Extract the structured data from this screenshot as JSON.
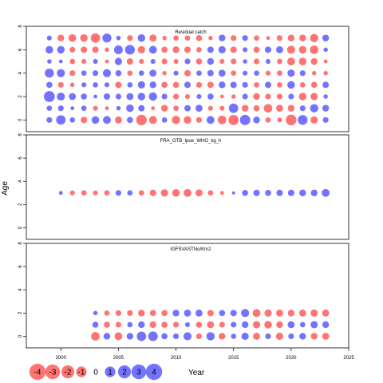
{
  "chart_data": {
    "type": "scatter",
    "subtype": "bubble",
    "ylabel": "Age",
    "xlabel": "Year",
    "xlim": [
      1997,
      2025
    ],
    "xticks": [
      2000,
      2005,
      2010,
      2015,
      2020,
      2025
    ],
    "ylim": [
      -1,
      8
    ],
    "yticks": [
      0,
      2,
      4,
      6,
      8
    ],
    "colors": {
      "positive": "#6464ff",
      "negative": "#ff6464",
      "stroke": "#000000"
    },
    "legend": {
      "placement": "bottom-left",
      "values": [
        -4,
        -3,
        -2,
        -1,
        0,
        1,
        2,
        3,
        4
      ],
      "labels": [
        "-4",
        "-3",
        "-2",
        "-1",
        "0",
        "1",
        "2",
        "3",
        "4"
      ]
    },
    "panels": [
      {
        "title": "Residual catch",
        "years": [
          1999,
          2000,
          2001,
          2002,
          2003,
          2004,
          2005,
          2006,
          2007,
          2008,
          2009,
          2010,
          2011,
          2012,
          2013,
          2014,
          2015,
          2016,
          2017,
          2018,
          2019,
          2020,
          2021,
          2022,
          2023
        ],
        "ages": [
          0,
          1,
          2,
          3,
          4,
          5,
          6,
          7
        ],
        "residuals": [
          [
            0.6,
            2.0,
            0.5,
            -0.8,
            1.2,
            1.3,
            -1.0,
            0.7,
            -2.6,
            -1.3,
            0.5,
            -1.5,
            -1.2,
            -0.6,
            1.3,
            -1.6,
            -2.4,
            2.5,
            0.9,
            -0.5,
            -0.4,
            -2.7,
            2.2,
            -1.1,
            0.6
          ],
          [
            0.5,
            0.6,
            0.2,
            0.5,
            -0.4,
            -0.2,
            0.3,
            1.2,
            0.8,
            -0.2,
            -0.9,
            -0.5,
            0.8,
            1.0,
            -0.4,
            -0.4,
            2.0,
            -0.9,
            -0.7,
            -1.6,
            -1.0,
            -0.9,
            0.6,
            1.5,
            0.9
          ],
          [
            2.8,
            1.4,
            1.0,
            0.7,
            0.2,
            0.8,
            0.6,
            1.0,
            1.2,
            1.5,
            0.6,
            -0.6,
            -0.4,
            0.4,
            0.7,
            -0.2,
            -0.3,
            0.6,
            -0.9,
            -0.6,
            -0.6,
            0.6,
            -1.2,
            -1.1,
            0.3
          ],
          [
            0.7,
            -0.6,
            -0.3,
            0.4,
            0.5,
            0.4,
            -0.8,
            0.5,
            1.1,
            0.9,
            -0.7,
            -0.7,
            0.8,
            -0.6,
            -0.8,
            0.9,
            0.8,
            0.6,
            -0.5,
            0.8,
            -0.5,
            1.2,
            -0.5,
            -0.7,
            0.8
          ],
          [
            1.8,
            1.4,
            -0.6,
            0.5,
            0.6,
            1.4,
            0.7,
            -0.5,
            0.5,
            1.0,
            -0.3,
            0.4,
            -0.8,
            0.5,
            0.8,
            1.0,
            -0.5,
            0.4,
            0.5,
            -0.4,
            -0.5,
            1.1,
            0.6,
            -0.3,
            -0.3
          ],
          [
            0.3,
            0.2,
            -0.5,
            -0.4,
            0.4,
            -0.2,
            1.1,
            -0.8,
            -0.4,
            0.4,
            -0.6,
            -0.4,
            0.6,
            -0.7,
            0.9,
            -0.4,
            -0.6,
            0.3,
            -0.6,
            0.4,
            -0.5,
            -1.3,
            -1.2,
            -0.9,
            -0.2
          ],
          [
            1.2,
            1.2,
            -0.6,
            -0.8,
            -0.8,
            -0.3,
            1.7,
            2.2,
            -1.1,
            1.3,
            -0.7,
            -0.9,
            -0.8,
            -0.5,
            0.8,
            1.1,
            -0.8,
            0.4,
            -0.7,
            0.8,
            1.0,
            -1.4,
            -1.2,
            -1.6,
            0.3
          ],
          [
            0.4,
            -0.9,
            -1.2,
            -1.2,
            -2.0,
            1.8,
            0.3,
            -0.6,
            1.2,
            -1.0,
            -0.3,
            -0.5,
            -0.5,
            -0.7,
            -0.3,
            0.9,
            -0.6,
            0.6,
            -0.5,
            -0.2,
            -0.6,
            -0.9,
            -0.9,
            -1.5,
            0.9
          ]
        ]
      },
      {
        "title": "FRA_OTB_lpue_WHG_kg_h",
        "years": [
          2000,
          2001,
          2002,
          2003,
          2004,
          2005,
          2006,
          2007,
          2008,
          2009,
          2010,
          2011,
          2012,
          2013,
          2014,
          2015,
          2016,
          2017,
          2018,
          2019,
          2020,
          2021,
          2022,
          2023
        ],
        "ages": [
          3
        ],
        "residuals": [
          [
            0.2,
            -0.4,
            -0.5,
            -0.4,
            -0.5,
            0.6,
            0.5,
            -0.5,
            -0.8,
            -1.1,
            -1.2,
            -1.3,
            -1.0,
            -0.5,
            -0.2,
            0.1,
            0.7,
            0.8,
            0.7,
            0.8,
            0.8,
            0.9,
            0.9,
            1.3
          ]
        ]
      },
      {
        "title": "IGFSVAS\u0010TNo/Km2",
        "years": [
          2003,
          2004,
          2005,
          2006,
          2007,
          2008,
          2009,
          2010,
          2011,
          2012,
          2013,
          2014,
          2015,
          2016,
          2017,
          2018,
          2019,
          2020,
          2021,
          2022,
          2023
        ],
        "ages": [
          0,
          1,
          2
        ],
        "residuals": [
          [
            -1.6,
            0.9,
            -1.3,
            0.9,
            2.0,
            2.1,
            0.7,
            0.6,
            1.4,
            -0.6,
            1.5,
            -0.9,
            0.5,
            1.1,
            -1.0,
            0.6,
            -1.1,
            0.6,
            0.9,
            -0.9,
            -1.0
          ],
          [
            0.7,
            -0.7,
            -0.6,
            0.5,
            0.9,
            -0.9,
            -0.7,
            -0.6,
            0.4,
            -0.7,
            -1.0,
            -0.6,
            0.6,
            0.9,
            -1.1,
            -1.2,
            -0.9,
            1.0,
            0.5,
            1.1,
            0.9
          ],
          [
            0.3,
            -0.5,
            -0.6,
            -0.6,
            -0.9,
            -0.7,
            -0.7,
            0.9,
            1.0,
            1.0,
            -0.8,
            0.7,
            0.8,
            1.4,
            -1.3,
            -1.1,
            -1.0,
            -0.9,
            -1.0,
            -1.1,
            -1.0
          ]
        ]
      }
    ]
  }
}
